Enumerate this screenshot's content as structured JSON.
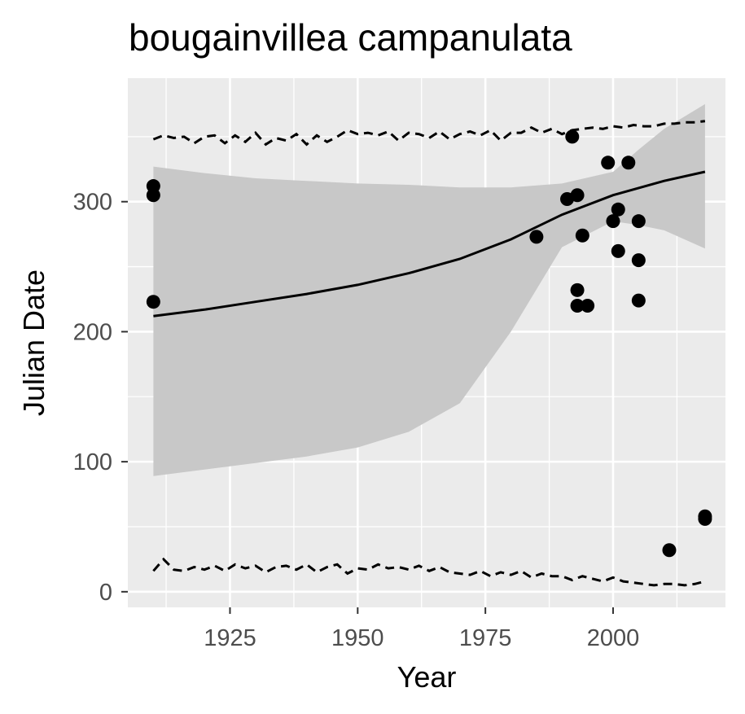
{
  "chart_data": {
    "type": "scatter",
    "title": "bougainvillea campanulata",
    "xlabel": "Year",
    "ylabel": "Julian Date",
    "xlim": [
      1905,
      2022
    ],
    "ylim": [
      -12,
      395
    ],
    "x_ticks": [
      1925,
      1950,
      1975,
      2000
    ],
    "x_tick_labels": [
      "1925",
      "1950",
      "1975",
      "2000"
    ],
    "y_ticks": [
      0,
      100,
      200,
      300
    ],
    "y_tick_labels": [
      "0",
      "100",
      "200",
      "300"
    ],
    "grid": true,
    "legend": "none",
    "colors": {
      "panel": "#ebebeb",
      "grid": "#ffffff",
      "ribbon": "#c8c8c8",
      "line": "#000000",
      "points": "#000000",
      "tick_text": "#4d4d4d"
    },
    "points": [
      {
        "x": 1910,
        "y": 312
      },
      {
        "x": 1910,
        "y": 305
      },
      {
        "x": 1910,
        "y": 223
      },
      {
        "x": 1985,
        "y": 273
      },
      {
        "x": 1991,
        "y": 302
      },
      {
        "x": 1992,
        "y": 350
      },
      {
        "x": 1993,
        "y": 305
      },
      {
        "x": 1993,
        "y": 232
      },
      {
        "x": 1993,
        "y": 220
      },
      {
        "x": 1994,
        "y": 274
      },
      {
        "x": 1995,
        "y": 220
      },
      {
        "x": 1999,
        "y": 330
      },
      {
        "x": 2000,
        "y": 285
      },
      {
        "x": 2001,
        "y": 294
      },
      {
        "x": 2001,
        "y": 262
      },
      {
        "x": 2003,
        "y": 330
      },
      {
        "x": 2005,
        "y": 285
      },
      {
        "x": 2005,
        "y": 255
      },
      {
        "x": 2005,
        "y": 224
      },
      {
        "x": 2011,
        "y": 32
      },
      {
        "x": 2018,
        "y": 58
      },
      {
        "x": 2018,
        "y": 56
      }
    ],
    "fit_line": {
      "x": [
        1910,
        1920,
        1930,
        1940,
        1950,
        1960,
        1970,
        1980,
        1990,
        2000,
        2010,
        2018
      ],
      "y": [
        212,
        217,
        223,
        229,
        236,
        245,
        256,
        271,
        290,
        305,
        316,
        323
      ]
    },
    "confidence_band": {
      "x": [
        1910,
        1920,
        1930,
        1940,
        1950,
        1960,
        1970,
        1980,
        1990,
        2000,
        2005,
        2010,
        2018
      ],
      "upper": [
        327,
        322,
        318,
        316,
        314,
        313,
        311,
        311,
        314,
        323,
        340,
        356,
        375
      ],
      "lower": [
        89,
        94,
        99,
        104,
        111,
        123,
        145,
        200,
        265,
        285,
        282,
        278,
        264
      ]
    },
    "dashed_upper": {
      "x": [
        1910,
        1912,
        1914,
        1916,
        1918,
        1920,
        1922,
        1924,
        1926,
        1928,
        1930,
        1932,
        1934,
        1936,
        1938,
        1940,
        1942,
        1944,
        1946,
        1948,
        1950,
        1952,
        1954,
        1956,
        1958,
        1960,
        1962,
        1964,
        1966,
        1968,
        1970,
        1972,
        1974,
        1976,
        1978,
        1980,
        1982,
        1984,
        1986,
        1988,
        1990,
        1992,
        1994,
        1996,
        1998,
        2000,
        2002,
        2004,
        2006,
        2008,
        2010,
        2012,
        2014,
        2016,
        2018
      ],
      "y": [
        348,
        351,
        349,
        350,
        345,
        350,
        351,
        345,
        351,
        346,
        353,
        344,
        349,
        347,
        352,
        344,
        351,
        346,
        350,
        355,
        352,
        353,
        351,
        354,
        347,
        353,
        352,
        349,
        354,
        348,
        352,
        354,
        351,
        355,
        347,
        353,
        353,
        357,
        353,
        356,
        352,
        355,
        356,
        357,
        356,
        358,
        357,
        359,
        358,
        358,
        360,
        360,
        361,
        361,
        362
      ]
    },
    "dashed_lower": {
      "x": [
        1910,
        1912,
        1914,
        1916,
        1918,
        1920,
        1922,
        1924,
        1926,
        1928,
        1930,
        1932,
        1934,
        1936,
        1938,
        1940,
        1942,
        1944,
        1946,
        1948,
        1950,
        1952,
        1954,
        1956,
        1958,
        1960,
        1962,
        1964,
        1966,
        1968,
        1970,
        1972,
        1974,
        1976,
        1978,
        1980,
        1982,
        1984,
        1986,
        1988,
        1990,
        1992,
        1994,
        1996,
        1998,
        2000,
        2002,
        2004,
        2006,
        2008,
        2010,
        2012,
        2014,
        2016,
        2018
      ],
      "y": [
        16,
        25,
        17,
        16,
        19,
        17,
        20,
        16,
        21,
        18,
        20,
        15,
        19,
        20,
        17,
        21,
        15,
        19,
        21,
        14,
        18,
        17,
        21,
        18,
        19,
        17,
        20,
        16,
        19,
        15,
        14,
        13,
        16,
        12,
        15,
        13,
        16,
        11,
        14,
        12,
        12,
        9,
        12,
        10,
        8,
        11,
        8,
        7,
        6,
        5,
        6,
        6,
        5,
        6,
        8
      ]
    }
  }
}
